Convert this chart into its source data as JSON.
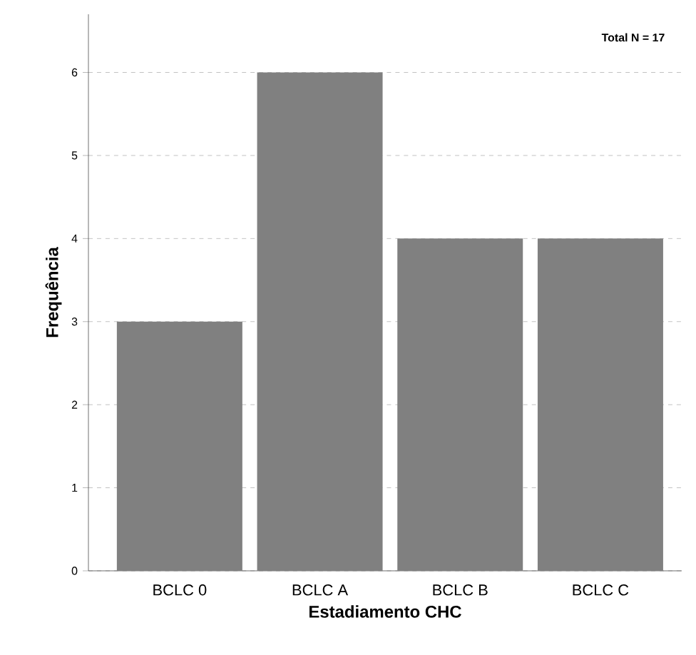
{
  "chart_data": {
    "type": "bar",
    "xlabel": "Estadiamento CHC",
    "ylabel": "Frequência",
    "categories": [
      "BCLC 0",
      "BCLC A",
      "BCLC B",
      "BCLC C"
    ],
    "values": [
      3,
      6,
      4,
      4
    ],
    "color": "#808080",
    "ylim": [
      0,
      6.7
    ],
    "yticks": [
      0,
      1,
      2,
      3,
      4,
      5,
      6
    ],
    "grid": "y",
    "annotations": [
      "Total N =  17"
    ]
  }
}
